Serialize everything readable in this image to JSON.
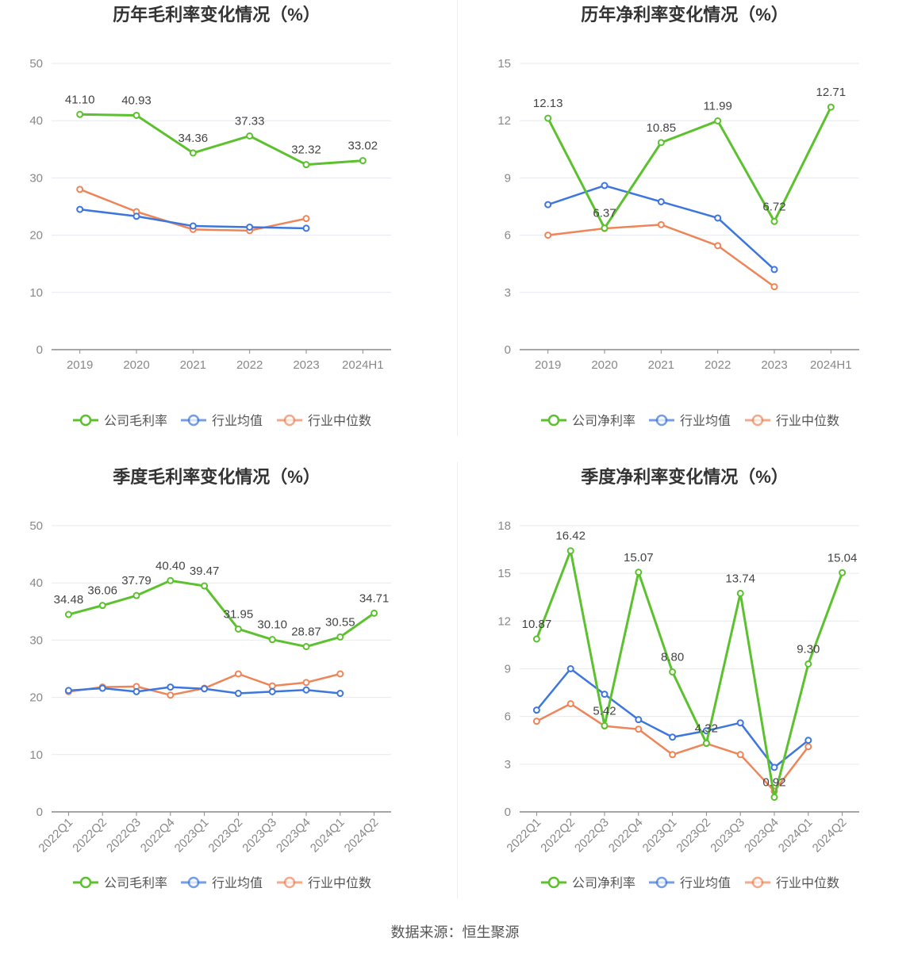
{
  "colors": {
    "company": "#5cc12e",
    "industry_avg": "#3d76dd",
    "industry_median": "#ee8559",
    "grid": "#e6e9f0",
    "axis": "#8a8a8a",
    "tick_text": "#888888",
    "label_text": "#444444",
    "title_text": "#333333",
    "legend_text": "#555555"
  },
  "source": {
    "text": "数据来源：恒生聚源"
  },
  "chart_data": [
    {
      "type": "line",
      "title": "历年毛利率变化情况（%）",
      "categories": [
        "2019",
        "2020",
        "2021",
        "2022",
        "2023",
        "2024H1"
      ],
      "ylim": [
        0,
        50
      ],
      "yticks": [
        0,
        10,
        20,
        30,
        40,
        50
      ],
      "x_rotated": false,
      "legend": [
        "公司毛利率",
        "行业均值",
        "行业中位数"
      ],
      "series": [
        {
          "name": "公司毛利率",
          "values": [
            41.1,
            40.93,
            34.36,
            37.33,
            32.32,
            33.02
          ],
          "labels": [
            "41.10",
            "40.93",
            "34.36",
            "37.33",
            "32.32",
            "33.02"
          ]
        },
        {
          "name": "行业均值",
          "values": [
            24.5,
            23.3,
            21.6,
            21.4,
            21.2,
            null
          ]
        },
        {
          "name": "行业中位数",
          "values": [
            28.0,
            24.1,
            21.0,
            20.8,
            22.9,
            null
          ]
        }
      ]
    },
    {
      "type": "line",
      "title": "历年净利率变化情况（%）",
      "categories": [
        "2019",
        "2020",
        "2021",
        "2022",
        "2023",
        "2024H1"
      ],
      "ylim": [
        0,
        15
      ],
      "yticks": [
        0,
        3,
        6,
        9,
        12,
        15
      ],
      "x_rotated": false,
      "legend": [
        "公司净利率",
        "行业均值",
        "行业中位数"
      ],
      "series": [
        {
          "name": "公司净利率",
          "values": [
            12.13,
            6.37,
            10.85,
            11.99,
            6.72,
            12.71
          ],
          "labels": [
            "12.13",
            "6.37",
            "10.85",
            "11.99",
            "6.72",
            "12.71"
          ]
        },
        {
          "name": "行业均值",
          "values": [
            7.6,
            8.6,
            7.75,
            6.9,
            4.2,
            null
          ]
        },
        {
          "name": "行业中位数",
          "values": [
            6.0,
            6.35,
            6.55,
            5.45,
            3.3,
            null
          ]
        }
      ]
    },
    {
      "type": "line",
      "title": "季度毛利率变化情况（%）",
      "categories": [
        "2022Q1",
        "2022Q2",
        "2022Q3",
        "2022Q4",
        "2023Q1",
        "2023Q2",
        "2023Q3",
        "2023Q4",
        "2024Q1",
        "2024Q2"
      ],
      "ylim": [
        0,
        50
      ],
      "yticks": [
        0,
        10,
        20,
        30,
        40,
        50
      ],
      "x_rotated": true,
      "legend": [
        "公司毛利率",
        "行业均值",
        "行业中位数"
      ],
      "series": [
        {
          "name": "公司毛利率",
          "values": [
            34.48,
            36.06,
            37.79,
            40.4,
            39.47,
            31.95,
            30.1,
            28.87,
            30.55,
            34.71
          ],
          "labels": [
            "34.48",
            "36.06",
            "37.79",
            "40.40",
            "39.47",
            "31.95",
            "30.10",
            "28.87",
            "30.55",
            "34.71"
          ]
        },
        {
          "name": "行业均值",
          "values": [
            21.2,
            21.6,
            21.0,
            21.8,
            21.5,
            20.7,
            21.0,
            21.3,
            20.7,
            null
          ]
        },
        {
          "name": "行业中位数",
          "values": [
            21.0,
            21.8,
            21.9,
            20.4,
            21.6,
            24.1,
            22.0,
            22.6,
            24.1,
            null
          ]
        }
      ]
    },
    {
      "type": "line",
      "title": "季度净利率变化情况（%）",
      "categories": [
        "2022Q1",
        "2022Q2",
        "2022Q3",
        "2022Q4",
        "2023Q1",
        "2023Q2",
        "2023Q3",
        "2023Q4",
        "2024Q1",
        "2024Q2"
      ],
      "ylim": [
        0,
        18
      ],
      "yticks": [
        0,
        3,
        6,
        9,
        12,
        15,
        18
      ],
      "x_rotated": true,
      "legend": [
        "公司净利率",
        "行业均值",
        "行业中位数"
      ],
      "series": [
        {
          "name": "公司净利率",
          "values": [
            10.87,
            16.42,
            5.42,
            15.07,
            8.8,
            4.32,
            13.74,
            0.92,
            9.3,
            15.04
          ],
          "labels": [
            "10.87",
            "16.42",
            "5.42",
            "15.07",
            "8.80",
            "4.32",
            "13.74",
            "0.92",
            "9.30",
            "15.04"
          ]
        },
        {
          "name": "行业均值",
          "values": [
            6.4,
            9.0,
            7.4,
            5.8,
            4.7,
            5.1,
            5.6,
            2.8,
            4.5,
            null
          ]
        },
        {
          "name": "行业中位数",
          "values": [
            5.7,
            6.8,
            5.4,
            5.2,
            3.6,
            4.3,
            3.6,
            1.3,
            4.1,
            null
          ]
        }
      ]
    }
  ]
}
